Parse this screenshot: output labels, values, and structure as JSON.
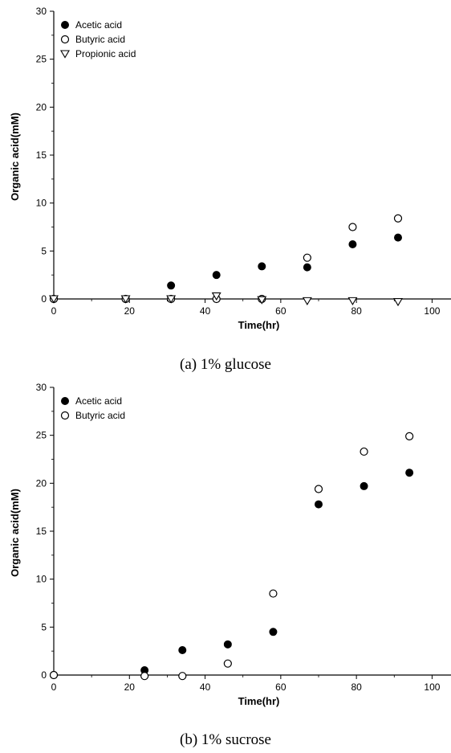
{
  "chart_data": [
    {
      "type": "scatter",
      "xlabel": "Time(hr)",
      "ylabel": "Organic acid(mM)",
      "caption": "(a)  1%  glucose",
      "xlim": [
        0,
        105
      ],
      "ylim": [
        0,
        30
      ],
      "xticks": [
        0,
        20,
        40,
        60,
        80,
        100
      ],
      "yticks": [
        0,
        5,
        10,
        15,
        20,
        25,
        30
      ],
      "grid": false,
      "legend_position": "top-left",
      "series": [
        {
          "name": "Acetic acid",
          "marker": "filled-circle",
          "color": "#000000",
          "x": [
            0,
            19,
            31,
            43,
            55,
            67,
            79,
            91
          ],
          "y": [
            0,
            0,
            1.4,
            2.5,
            3.4,
            3.3,
            5.7,
            6.4
          ]
        },
        {
          "name": "Butyric acid",
          "marker": "open-circle",
          "color": "#000000",
          "x": [
            0,
            19,
            31,
            43,
            55,
            67,
            79,
            91
          ],
          "y": [
            0,
            0,
            0,
            0,
            0,
            4.3,
            7.5,
            8.4
          ]
        },
        {
          "name": "Propionic acid",
          "marker": "open-triangle-down",
          "color": "#000000",
          "x": [
            0,
            19,
            31,
            43,
            55,
            67,
            79,
            91
          ],
          "y": [
            0,
            0,
            0,
            0.3,
            -0.1,
            -0.2,
            -0.2,
            -0.3
          ]
        }
      ]
    },
    {
      "type": "scatter",
      "xlabel": "Time(hr)",
      "ylabel": "Organic acid(mM)",
      "caption": "(b)  1%  sucrose",
      "xlim": [
        0,
        105
      ],
      "ylim": [
        0,
        30
      ],
      "xticks": [
        0,
        20,
        40,
        60,
        80,
        100
      ],
      "yticks": [
        0,
        5,
        10,
        15,
        20,
        25,
        30
      ],
      "grid": false,
      "legend_position": "top-left",
      "series": [
        {
          "name": "Acetic acid",
          "marker": "filled-circle",
          "color": "#000000",
          "x": [
            0,
            24,
            34,
            46,
            58,
            70,
            82,
            94
          ],
          "y": [
            0,
            0.5,
            2.6,
            3.2,
            4.5,
            17.8,
            19.7,
            21.1
          ]
        },
        {
          "name": "Butyric acid",
          "marker": "open-circle",
          "color": "#000000",
          "x": [
            0,
            24,
            34,
            46,
            58,
            70,
            82,
            94
          ],
          "y": [
            0,
            -0.1,
            -0.1,
            1.2,
            8.5,
            19.4,
            23.3,
            24.9
          ]
        }
      ]
    }
  ]
}
